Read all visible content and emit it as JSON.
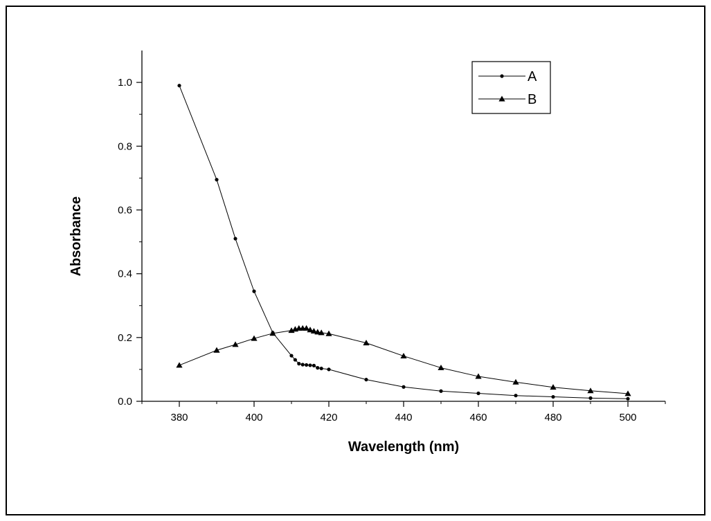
{
  "chart_data": {
    "type": "line",
    "title": "",
    "xlabel": "Wavelength (nm)",
    "ylabel": "Absorbance",
    "xlim": [
      370,
      510
    ],
    "ylim": [
      0.0,
      1.1
    ],
    "xticks": [
      380,
      400,
      420,
      440,
      460,
      480,
      500
    ],
    "xtick_labels": [
      "380",
      "400",
      "420",
      "440",
      "460",
      "480",
      "500"
    ],
    "yticks": [
      0.0,
      0.2,
      0.4,
      0.6,
      0.8,
      1.0
    ],
    "ytick_labels": [
      "0.0",
      "0.2",
      "0.4",
      "0.6",
      "0.8",
      "1.0"
    ],
    "grid": false,
    "legend_position": "top-right",
    "series": [
      {
        "name": "A",
        "marker": "circle",
        "color": "#000000",
        "x": [
          380,
          390,
          395,
          400,
          405,
          410,
          411,
          412,
          413,
          414,
          415,
          416,
          417,
          418,
          420,
          430,
          440,
          450,
          460,
          470,
          480,
          490,
          500
        ],
        "y": [
          0.99,
          0.695,
          0.51,
          0.345,
          0.215,
          0.143,
          0.13,
          0.118,
          0.115,
          0.114,
          0.113,
          0.112,
          0.105,
          0.103,
          0.1,
          0.068,
          0.045,
          0.032,
          0.025,
          0.018,
          0.014,
          0.01,
          0.008
        ]
      },
      {
        "name": "B",
        "marker": "triangle",
        "color": "#000000",
        "x": [
          380,
          390,
          395,
          400,
          405,
          410,
          411,
          412,
          413,
          414,
          415,
          416,
          417,
          418,
          420,
          430,
          440,
          450,
          460,
          470,
          480,
          490,
          500
        ],
        "y": [
          0.113,
          0.16,
          0.178,
          0.197,
          0.213,
          0.222,
          0.226,
          0.229,
          0.229,
          0.229,
          0.224,
          0.22,
          0.217,
          0.215,
          0.212,
          0.183,
          0.142,
          0.105,
          0.078,
          0.06,
          0.044,
          0.033,
          0.024
        ]
      }
    ]
  }
}
